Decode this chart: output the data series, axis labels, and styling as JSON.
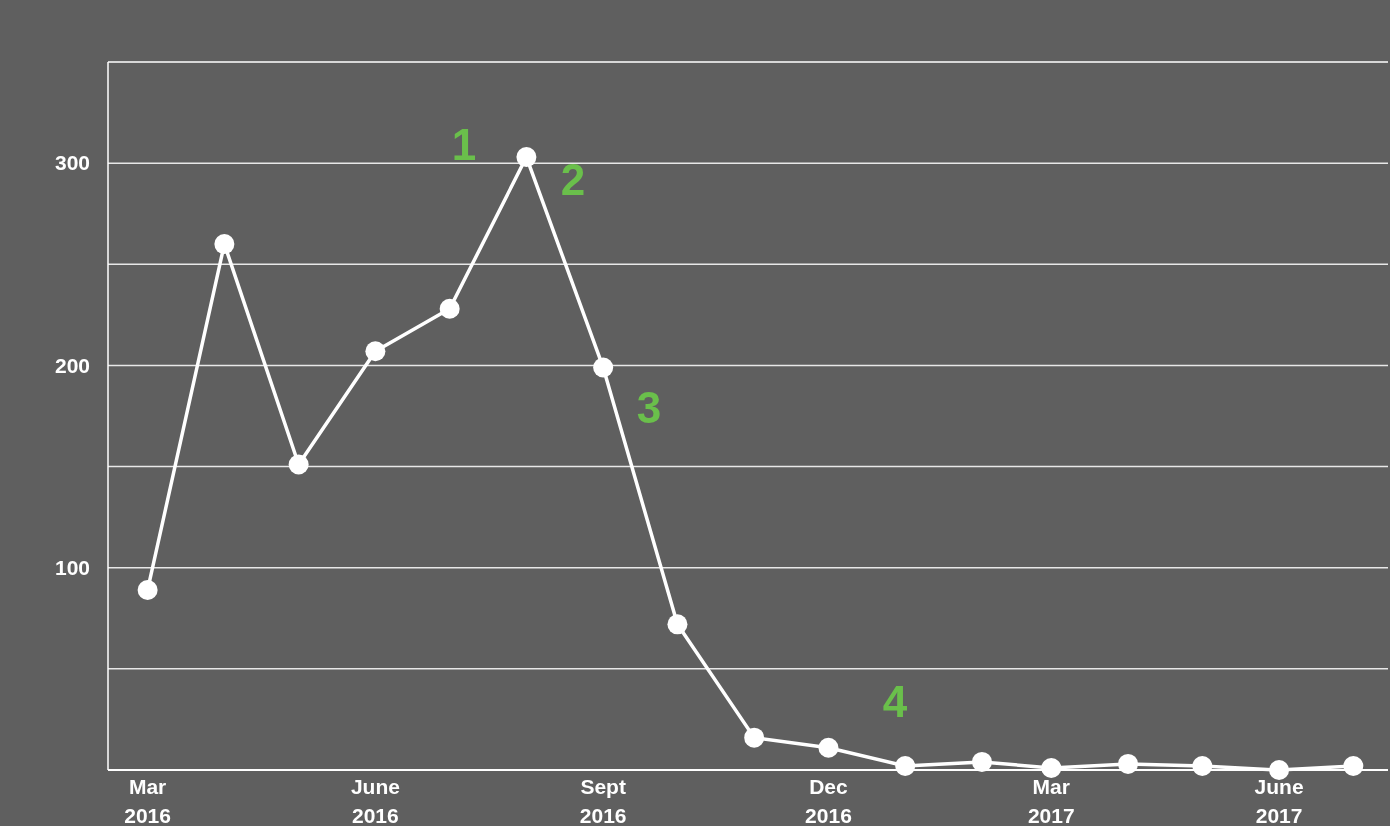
{
  "chart_data": {
    "type": "line",
    "x": [
      "2016-03",
      "2016-04",
      "2016-05",
      "2016-06",
      "2016-07",
      "2016-08",
      "2016-09",
      "2016-10",
      "2016-11",
      "2016-12",
      "2017-01",
      "2017-02",
      "2017-03",
      "2017-04",
      "2017-05",
      "2017-06",
      "2017-07"
    ],
    "series": [
      {
        "color": "#ffffff",
        "values": [
          89,
          260,
          151,
          207,
          228,
          303,
          199,
          72,
          16,
          11,
          2,
          4,
          1,
          3,
          2,
          0,
          2
        ]
      }
    ],
    "xlim": [
      "2016-02-14",
      "2017-07-15"
    ],
    "xticks": [
      {
        "value": "2016-03",
        "label": "Mar 2016"
      },
      {
        "value": "2016-06",
        "label": "June 2016"
      },
      {
        "value": "2016-09",
        "label": "Sept 2016"
      },
      {
        "value": "2016-12",
        "label": "Dec 2016"
      },
      {
        "value": "2017-03",
        "label": "Mar 2017"
      },
      {
        "value": "2017-06",
        "label": "June 2017"
      }
    ],
    "ylim": [
      0,
      350
    ],
    "yticks": [
      {
        "value": 50,
        "label": null
      },
      100,
      {
        "value": 150,
        "label": null
      },
      200,
      {
        "value": 250,
        "label": null
      },
      300
    ],
    "grid": "y",
    "marker": "circle",
    "line_style": "solid",
    "annotations": [
      "1",
      "2",
      "3",
      "4"
    ]
  }
}
